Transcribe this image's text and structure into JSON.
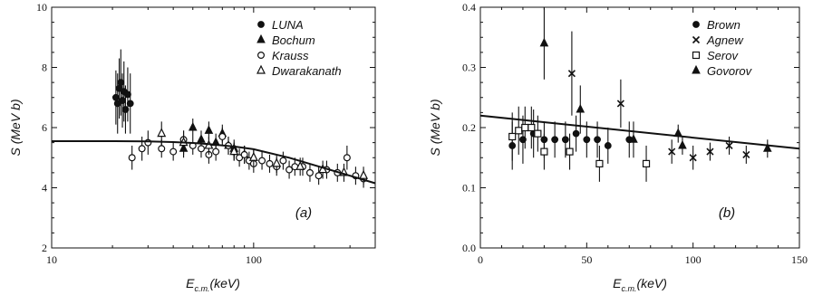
{
  "chart_data": [
    {
      "type": "scatter",
      "panel_label": "(a)",
      "x_scale": "log",
      "xlabel_main": "E",
      "xlabel_sub": "c.m.",
      "xlabel_unit": "(keV)",
      "ylabel": "S (MeV b)",
      "xlim": [
        10,
        400
      ],
      "ylim": [
        2,
        10
      ],
      "xticks": [
        10,
        100
      ],
      "xtick_labels": [
        "10",
        "100"
      ],
      "yticks": [
        2,
        4,
        6,
        8,
        10
      ],
      "ytick_labels": [
        "2",
        "4",
        "6",
        "8",
        "10"
      ],
      "legend_position": "top-right",
      "series": [
        {
          "name": "LUNA",
          "marker": "circle-filled",
          "x": [
            20.8,
            21.2,
            21.6,
            22.0,
            22.4,
            22.8,
            23.2,
            23.8,
            24.5
          ],
          "y": [
            7.0,
            6.8,
            7.3,
            7.5,
            6.9,
            7.2,
            6.6,
            7.1,
            6.8
          ],
          "err": [
            0.9,
            1.0,
            1.0,
            1.1,
            0.9,
            1.0,
            0.8,
            0.9,
            1.0
          ]
        },
        {
          "name": "Bochum",
          "marker": "triangle-filled",
          "x": [
            45,
            50,
            55,
            60,
            65,
            70,
            75,
            80,
            90,
            100
          ],
          "y": [
            5.3,
            6.0,
            5.6,
            5.9,
            5.5,
            5.8,
            5.4,
            5.3,
            5.1,
            5.0
          ],
          "err": [
            0.3,
            0.3,
            0.3,
            0.3,
            0.3,
            0.3,
            0.3,
            0.3,
            0.3,
            0.3
          ]
        },
        {
          "name": "Krauss",
          "marker": "circle-open",
          "x": [
            25,
            28,
            30,
            35,
            40,
            45,
            50,
            55,
            60,
            65,
            70,
            75,
            80,
            85,
            90,
            95,
            100,
            110,
            120,
            130,
            140,
            150,
            160,
            175,
            190,
            210,
            230,
            260,
            290,
            320,
            350
          ],
          "y": [
            5.0,
            5.3,
            5.5,
            5.3,
            5.2,
            5.6,
            5.4,
            5.3,
            5.1,
            5.2,
            5.7,
            5.4,
            5.2,
            5.0,
            5.1,
            4.9,
            4.8,
            4.9,
            4.8,
            4.7,
            4.9,
            4.6,
            4.7,
            4.7,
            4.5,
            4.4,
            4.6,
            4.5,
            5.0,
            4.4,
            4.3
          ],
          "err": [
            0.4,
            0.4,
            0.4,
            0.3,
            0.3,
            0.3,
            0.3,
            0.3,
            0.3,
            0.3,
            0.3,
            0.3,
            0.3,
            0.3,
            0.3,
            0.3,
            0.3,
            0.3,
            0.3,
            0.3,
            0.3,
            0.3,
            0.3,
            0.3,
            0.3,
            0.3,
            0.3,
            0.3,
            0.4,
            0.3,
            0.3
          ]
        },
        {
          "name": "Dwarakanath",
          "marker": "triangle-open",
          "x": [
            35,
            45,
            60,
            80,
            100,
            130,
            170,
            220,
            280,
            350
          ],
          "y": [
            5.8,
            5.5,
            5.4,
            5.2,
            5.0,
            4.8,
            4.7,
            4.6,
            4.5,
            4.4
          ],
          "err": [
            0.4,
            0.4,
            0.3,
            0.3,
            0.3,
            0.3,
            0.3,
            0.3,
            0.3,
            0.3
          ]
        }
      ],
      "fit_curve": {
        "x": [
          10,
          20,
          30,
          40,
          50,
          60,
          80,
          100,
          150,
          200,
          300,
          400
        ],
        "y": [
          5.55,
          5.55,
          5.54,
          5.52,
          5.49,
          5.45,
          5.37,
          5.28,
          5.0,
          4.75,
          4.4,
          4.15
        ]
      }
    },
    {
      "type": "scatter",
      "panel_label": "(b)",
      "x_scale": "linear",
      "xlabel_main": "E",
      "xlabel_sub": "c.m.",
      "xlabel_unit": "(keV)",
      "ylabel": "S (MeV b)",
      "xlim": [
        0,
        150
      ],
      "ylim": [
        0.0,
        0.4
      ],
      "xticks": [
        0,
        50,
        100,
        150
      ],
      "xtick_labels": [
        "0",
        "50",
        "100",
        "150"
      ],
      "yticks": [
        0.0,
        0.1,
        0.2,
        0.3,
        0.4
      ],
      "ytick_labels": [
        "0.0",
        "0.1",
        "0.2",
        "0.3",
        "0.4"
      ],
      "legend_position": "top-right",
      "series": [
        {
          "name": "Brown",
          "marker": "circle-filled",
          "x": [
            15,
            20,
            25,
            30,
            35,
            40,
            45,
            50,
            55,
            60,
            70
          ],
          "y": [
            0.17,
            0.18,
            0.19,
            0.18,
            0.18,
            0.18,
            0.19,
            0.18,
            0.18,
            0.17,
            0.18
          ],
          "err": [
            0.04,
            0.04,
            0.04,
            0.03,
            0.03,
            0.03,
            0.03,
            0.03,
            0.03,
            0.03,
            0.03
          ]
        },
        {
          "name": "Agnew",
          "marker": "cross",
          "x": [
            43,
            66,
            90,
            100,
            108,
            117,
            125
          ],
          "y": [
            0.29,
            0.24,
            0.16,
            0.15,
            0.16,
            0.17,
            0.155
          ],
          "err": [
            0.07,
            0.04,
            0.02,
            0.02,
            0.015,
            0.015,
            0.015
          ]
        },
        {
          "name": "Serov",
          "marker": "square-open",
          "x": [
            15,
            18,
            21,
            24,
            27,
            30,
            42,
            56,
            78
          ],
          "y": [
            0.185,
            0.195,
            0.2,
            0.2,
            0.19,
            0.16,
            0.16,
            0.14,
            0.14
          ],
          "err": [
            0.04,
            0.04,
            0.035,
            0.035,
            0.03,
            0.03,
            0.03,
            0.03,
            0.03
          ]
        },
        {
          "name": "Govorov",
          "marker": "triangle-filled",
          "x": [
            30,
            47,
            72,
            93,
            95,
            135
          ],
          "y": [
            0.34,
            0.23,
            0.18,
            0.19,
            0.17,
            0.165
          ],
          "err": [
            0.06,
            0.04,
            0.03,
            0.015,
            0.015,
            0.015
          ]
        }
      ],
      "fit_curve": {
        "x": [
          0,
          150
        ],
        "y": [
          0.22,
          0.165
        ]
      }
    }
  ]
}
